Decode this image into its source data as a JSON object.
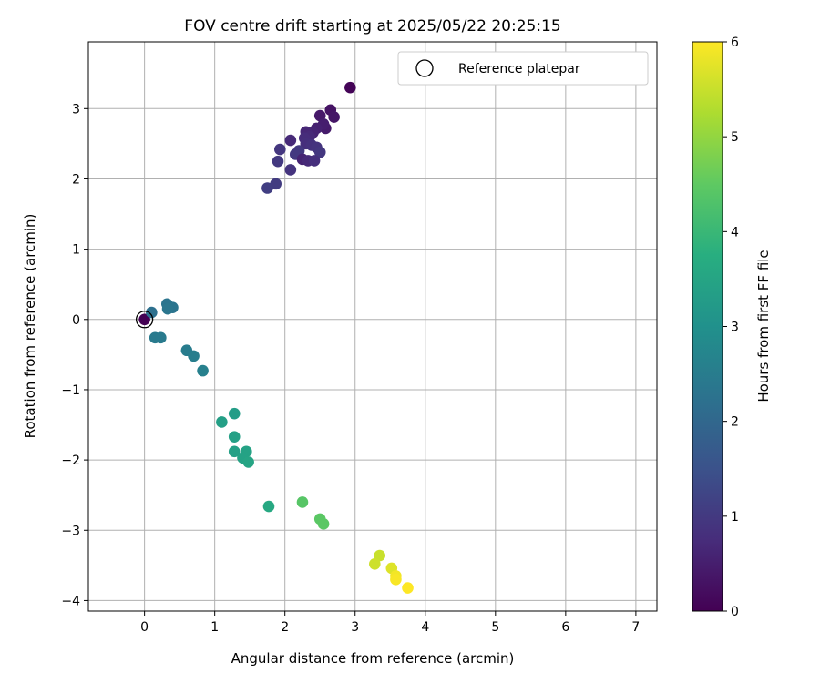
{
  "chart_data": {
    "type": "scatter",
    "title": "FOV centre drift starting at 2025/05/22 20:25:15",
    "xlabel": "Angular distance from reference (arcmin)",
    "ylabel": "Rotation from reference (arcmin)",
    "xlim": [
      -0.8,
      7.3
    ],
    "ylim": [
      -4.15,
      3.95
    ],
    "xticks": [
      "0",
      "1",
      "2",
      "3",
      "4",
      "5",
      "6",
      "7"
    ],
    "xtick_values": [
      0,
      1,
      2,
      3,
      4,
      5,
      6,
      7
    ],
    "yticks": [
      "−4",
      "−3",
      "−2",
      "−1",
      "0",
      "1",
      "2",
      "3"
    ],
    "ytick_values": [
      -4,
      -3,
      -2,
      -1,
      0,
      1,
      2,
      3
    ],
    "grid": true,
    "legend": {
      "placement": "top-right",
      "entries": [
        "Reference platepar"
      ]
    },
    "reference_point": {
      "x": 0,
      "y": 0
    },
    "colorbar": {
      "label": "Hours from first FF file",
      "colormap": "viridis",
      "range": [
        0,
        6
      ],
      "ticks": [
        "0",
        "1",
        "2",
        "3",
        "4",
        "5",
        "6"
      ],
      "tick_values": [
        0,
        1,
        2,
        3,
        4,
        5,
        6
      ]
    },
    "points": [
      {
        "x": 0.0,
        "y": 0.0,
        "hours": 0.0
      },
      {
        "x": 2.93,
        "y": 3.3,
        "hours": 0.05
      },
      {
        "x": 2.65,
        "y": 2.98,
        "hours": 0.3
      },
      {
        "x": 2.7,
        "y": 2.88,
        "hours": 0.35
      },
      {
        "x": 2.5,
        "y": 2.9,
        "hours": 0.4
      },
      {
        "x": 2.58,
        "y": 2.72,
        "hours": 0.45
      },
      {
        "x": 2.55,
        "y": 2.78,
        "hours": 0.5
      },
      {
        "x": 2.45,
        "y": 2.72,
        "hours": 0.55
      },
      {
        "x": 2.4,
        "y": 2.66,
        "hours": 0.6
      },
      {
        "x": 2.3,
        "y": 2.67,
        "hours": 0.65
      },
      {
        "x": 2.35,
        "y": 2.6,
        "hours": 0.7
      },
      {
        "x": 2.28,
        "y": 2.58,
        "hours": 0.75
      },
      {
        "x": 2.3,
        "y": 2.5,
        "hours": 0.8
      },
      {
        "x": 2.38,
        "y": 2.48,
        "hours": 0.85
      },
      {
        "x": 2.45,
        "y": 2.45,
        "hours": 0.9
      },
      {
        "x": 2.5,
        "y": 2.38,
        "hours": 0.95
      },
      {
        "x": 2.2,
        "y": 2.4,
        "hours": 1.0
      },
      {
        "x": 2.15,
        "y": 2.35,
        "hours": 1.0
      },
      {
        "x": 2.25,
        "y": 2.28,
        "hours": 0.6
      },
      {
        "x": 2.33,
        "y": 2.26,
        "hours": 0.7
      },
      {
        "x": 2.42,
        "y": 2.26,
        "hours": 0.8
      },
      {
        "x": 2.08,
        "y": 2.55,
        "hours": 0.7
      },
      {
        "x": 2.08,
        "y": 2.13,
        "hours": 0.9
      },
      {
        "x": 1.93,
        "y": 2.42,
        "hours": 0.95
      },
      {
        "x": 1.9,
        "y": 2.25,
        "hours": 1.0
      },
      {
        "x": 1.87,
        "y": 1.93,
        "hours": 1.05
      },
      {
        "x": 1.75,
        "y": 1.87,
        "hours": 1.1
      },
      {
        "x": 0.32,
        "y": 0.22,
        "hours": 2.3
      },
      {
        "x": 0.4,
        "y": 0.17,
        "hours": 2.3
      },
      {
        "x": 0.33,
        "y": 0.15,
        "hours": 2.35
      },
      {
        "x": 0.1,
        "y": 0.1,
        "hours": 2.2
      },
      {
        "x": 0.15,
        "y": -0.26,
        "hours": 2.45
      },
      {
        "x": 0.23,
        "y": -0.26,
        "hours": 2.45
      },
      {
        "x": 0.6,
        "y": -0.44,
        "hours": 2.5
      },
      {
        "x": 0.7,
        "y": -0.52,
        "hours": 2.55
      },
      {
        "x": 0.83,
        "y": -0.73,
        "hours": 2.6
      },
      {
        "x": 1.28,
        "y": -1.34,
        "hours": 3.3
      },
      {
        "x": 1.1,
        "y": -1.46,
        "hours": 3.35
      },
      {
        "x": 1.28,
        "y": -1.67,
        "hours": 3.4
      },
      {
        "x": 1.28,
        "y": -1.88,
        "hours": 3.4
      },
      {
        "x": 1.45,
        "y": -1.88,
        "hours": 3.45
      },
      {
        "x": 1.4,
        "y": -1.97,
        "hours": 3.45
      },
      {
        "x": 1.48,
        "y": -2.03,
        "hours": 3.5
      },
      {
        "x": 1.77,
        "y": -2.66,
        "hours": 3.6
      },
      {
        "x": 2.25,
        "y": -2.6,
        "hours": 4.4
      },
      {
        "x": 2.5,
        "y": -2.84,
        "hours": 4.45
      },
      {
        "x": 2.55,
        "y": -2.91,
        "hours": 4.45
      },
      {
        "x": 3.35,
        "y": -3.36,
        "hours": 5.5
      },
      {
        "x": 3.28,
        "y": -3.48,
        "hours": 5.55
      },
      {
        "x": 3.52,
        "y": -3.54,
        "hours": 5.7
      },
      {
        "x": 3.58,
        "y": -3.65,
        "hours": 5.9
      },
      {
        "x": 3.58,
        "y": -3.7,
        "hours": 5.95
      },
      {
        "x": 3.75,
        "y": -3.82,
        "hours": 6.0
      }
    ]
  }
}
